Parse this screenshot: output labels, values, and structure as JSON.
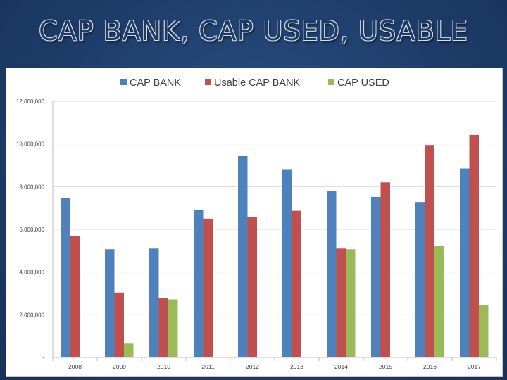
{
  "slide": {
    "title": "CAP BANK, CAP USED, USABLE"
  },
  "chart_data": {
    "type": "bar",
    "title": "",
    "xlabel": "",
    "ylabel": "",
    "ylim": [
      0,
      12000000
    ],
    "y_ticks": [
      0,
      2000000,
      4000000,
      6000000,
      8000000,
      10000000,
      12000000
    ],
    "y_tick_labels": [
      "-",
      "2,000,000",
      "4,000,000",
      "6,000,000",
      "8,000,000",
      "10,000,000",
      "12,000,000"
    ],
    "grid": true,
    "legend_position": "top",
    "categories": [
      "2008",
      "2009",
      "2010",
      "2011",
      "2012",
      "2013",
      "2014",
      "2015",
      "2016",
      "2017"
    ],
    "series": [
      {
        "name": "CAP BANK",
        "color": "#4f81bd",
        "values": [
          7480000,
          5070000,
          5100000,
          6900000,
          9450000,
          8820000,
          7800000,
          7520000,
          7280000,
          8850000
        ]
      },
      {
        "name": "Usable CAP BANK",
        "color": "#c0504d",
        "values": [
          5680000,
          3040000,
          2800000,
          6500000,
          6560000,
          6870000,
          5100000,
          8200000,
          9950000,
          10420000
        ]
      },
      {
        "name": "CAP USED",
        "color": "#9bbb59",
        "values": [
          0,
          650000,
          2720000,
          0,
          0,
          0,
          5070000,
          0,
          5220000,
          2460000
        ]
      }
    ]
  }
}
